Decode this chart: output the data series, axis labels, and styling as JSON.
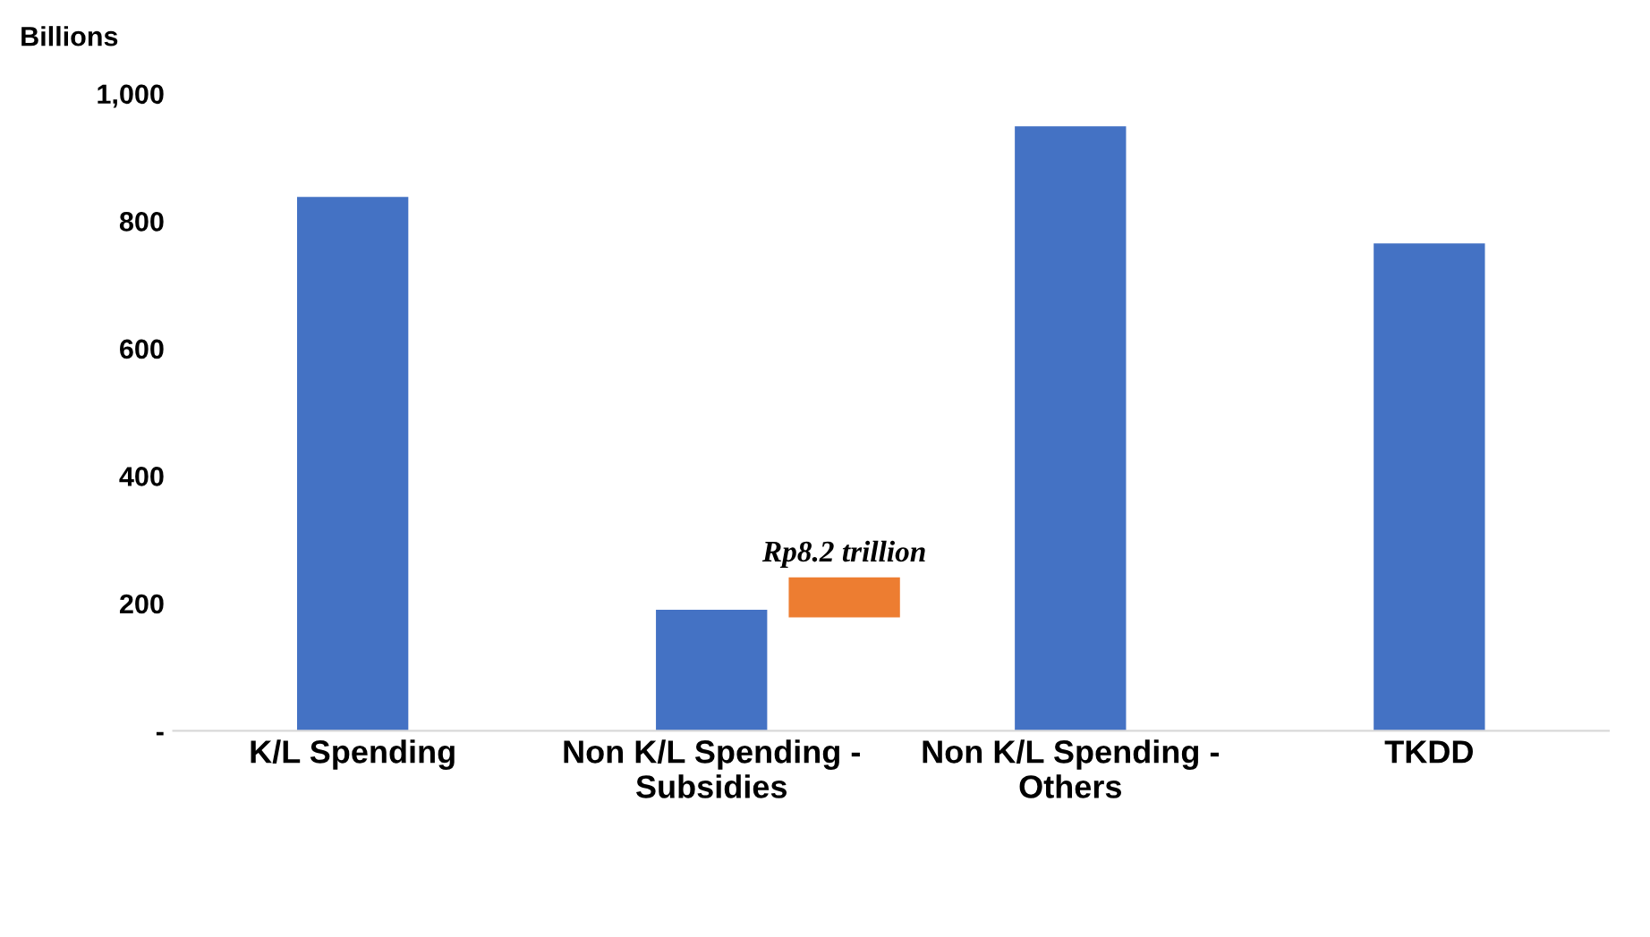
{
  "chart_data": {
    "type": "bar",
    "ylabel": "Billions",
    "categories": [
      "K/L Spending",
      "Non K/L Spending -\nSubsidies",
      "Non K/L Spending -\nOthers",
      "TKDD"
    ],
    "series": [
      {
        "color": "#4472c4",
        "values": [
          838,
          190,
          949,
          765
        ]
      },
      {
        "color": "#ed7d31",
        "values": [
          null,
          63,
          null,
          null
        ],
        "base": [
          null,
          178,
          null,
          null
        ]
      }
    ],
    "annotations": [
      "Rp8.2 trillion"
    ],
    "ylim": [
      0,
      1000
    ],
    "yticks": [
      {
        "value": 0,
        "label": "-"
      },
      {
        "value": 200,
        "label": "200"
      },
      {
        "value": 400,
        "label": "400"
      },
      {
        "value": 600,
        "label": "600"
      },
      {
        "value": 800,
        "label": "800"
      },
      {
        "value": 1000,
        "label": "1,000"
      }
    ],
    "grid": false,
    "legend": false
  }
}
